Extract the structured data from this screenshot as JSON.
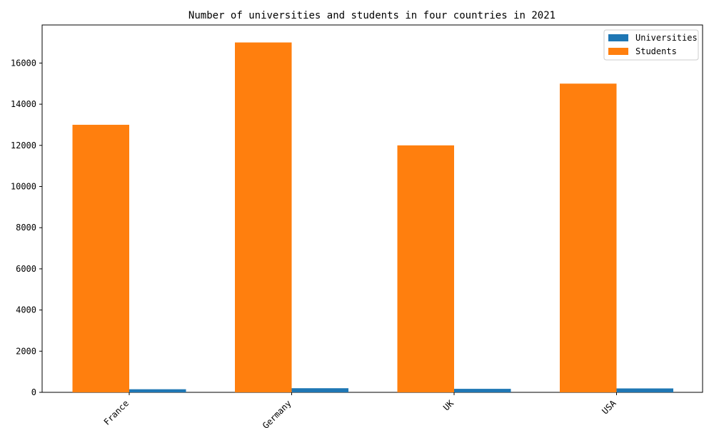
{
  "chart_data": {
    "type": "bar",
    "title": "Number of universities and students in four countries in 2021",
    "xlabel": "",
    "ylabel": "",
    "categories": [
      "France",
      "Germany",
      "UK",
      "USA"
    ],
    "series": [
      {
        "name": "Universities",
        "values": [
          150,
          200,
          170,
          190
        ],
        "color": "#1f77b4"
      },
      {
        "name": "Students",
        "values": [
          13000,
          17000,
          12000,
          15000
        ],
        "color": "#ff7f0e"
      }
    ],
    "ylim": [
      0,
      17850
    ],
    "yticks": [
      0,
      2000,
      4000,
      6000,
      8000,
      10000,
      12000,
      14000,
      16000
    ],
    "grid": false,
    "legend_position": "top-right"
  }
}
